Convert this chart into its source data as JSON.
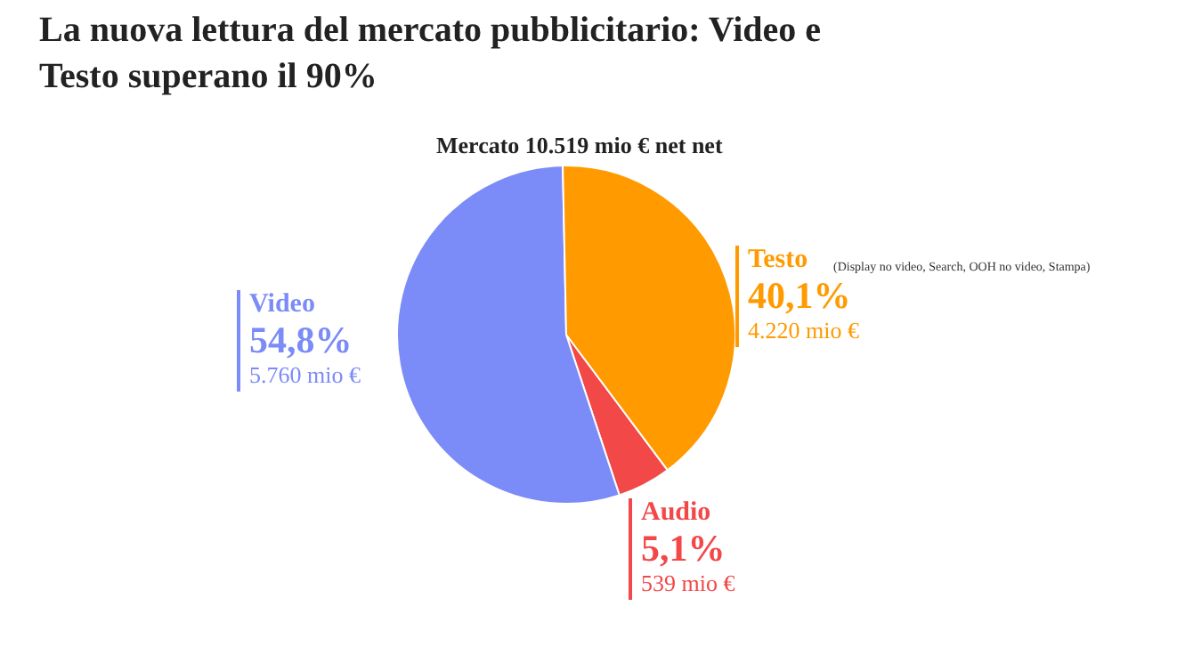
{
  "chart_data": {
    "type": "pie",
    "title": "La nuova lettura del mercato pubblicitario: Video e Testo superano il 90%",
    "subtitle": "Mercato 10.519 mio € net net",
    "categories": [
      "Audio",
      "Video",
      "Testo"
    ],
    "values": [
      539,
      5760,
      4220
    ],
    "colors": [
      "#f24848",
      "#7b8bf7",
      "#ff9a00"
    ],
    "value_labels": [
      "539 mio €",
      "5.760 mio €",
      "4.220 mio €"
    ],
    "annotations": [
      "5,1%",
      "54,8%",
      "40,1%",
      "(Display no video, Search, OOH no video, Stampa)"
    ]
  }
}
